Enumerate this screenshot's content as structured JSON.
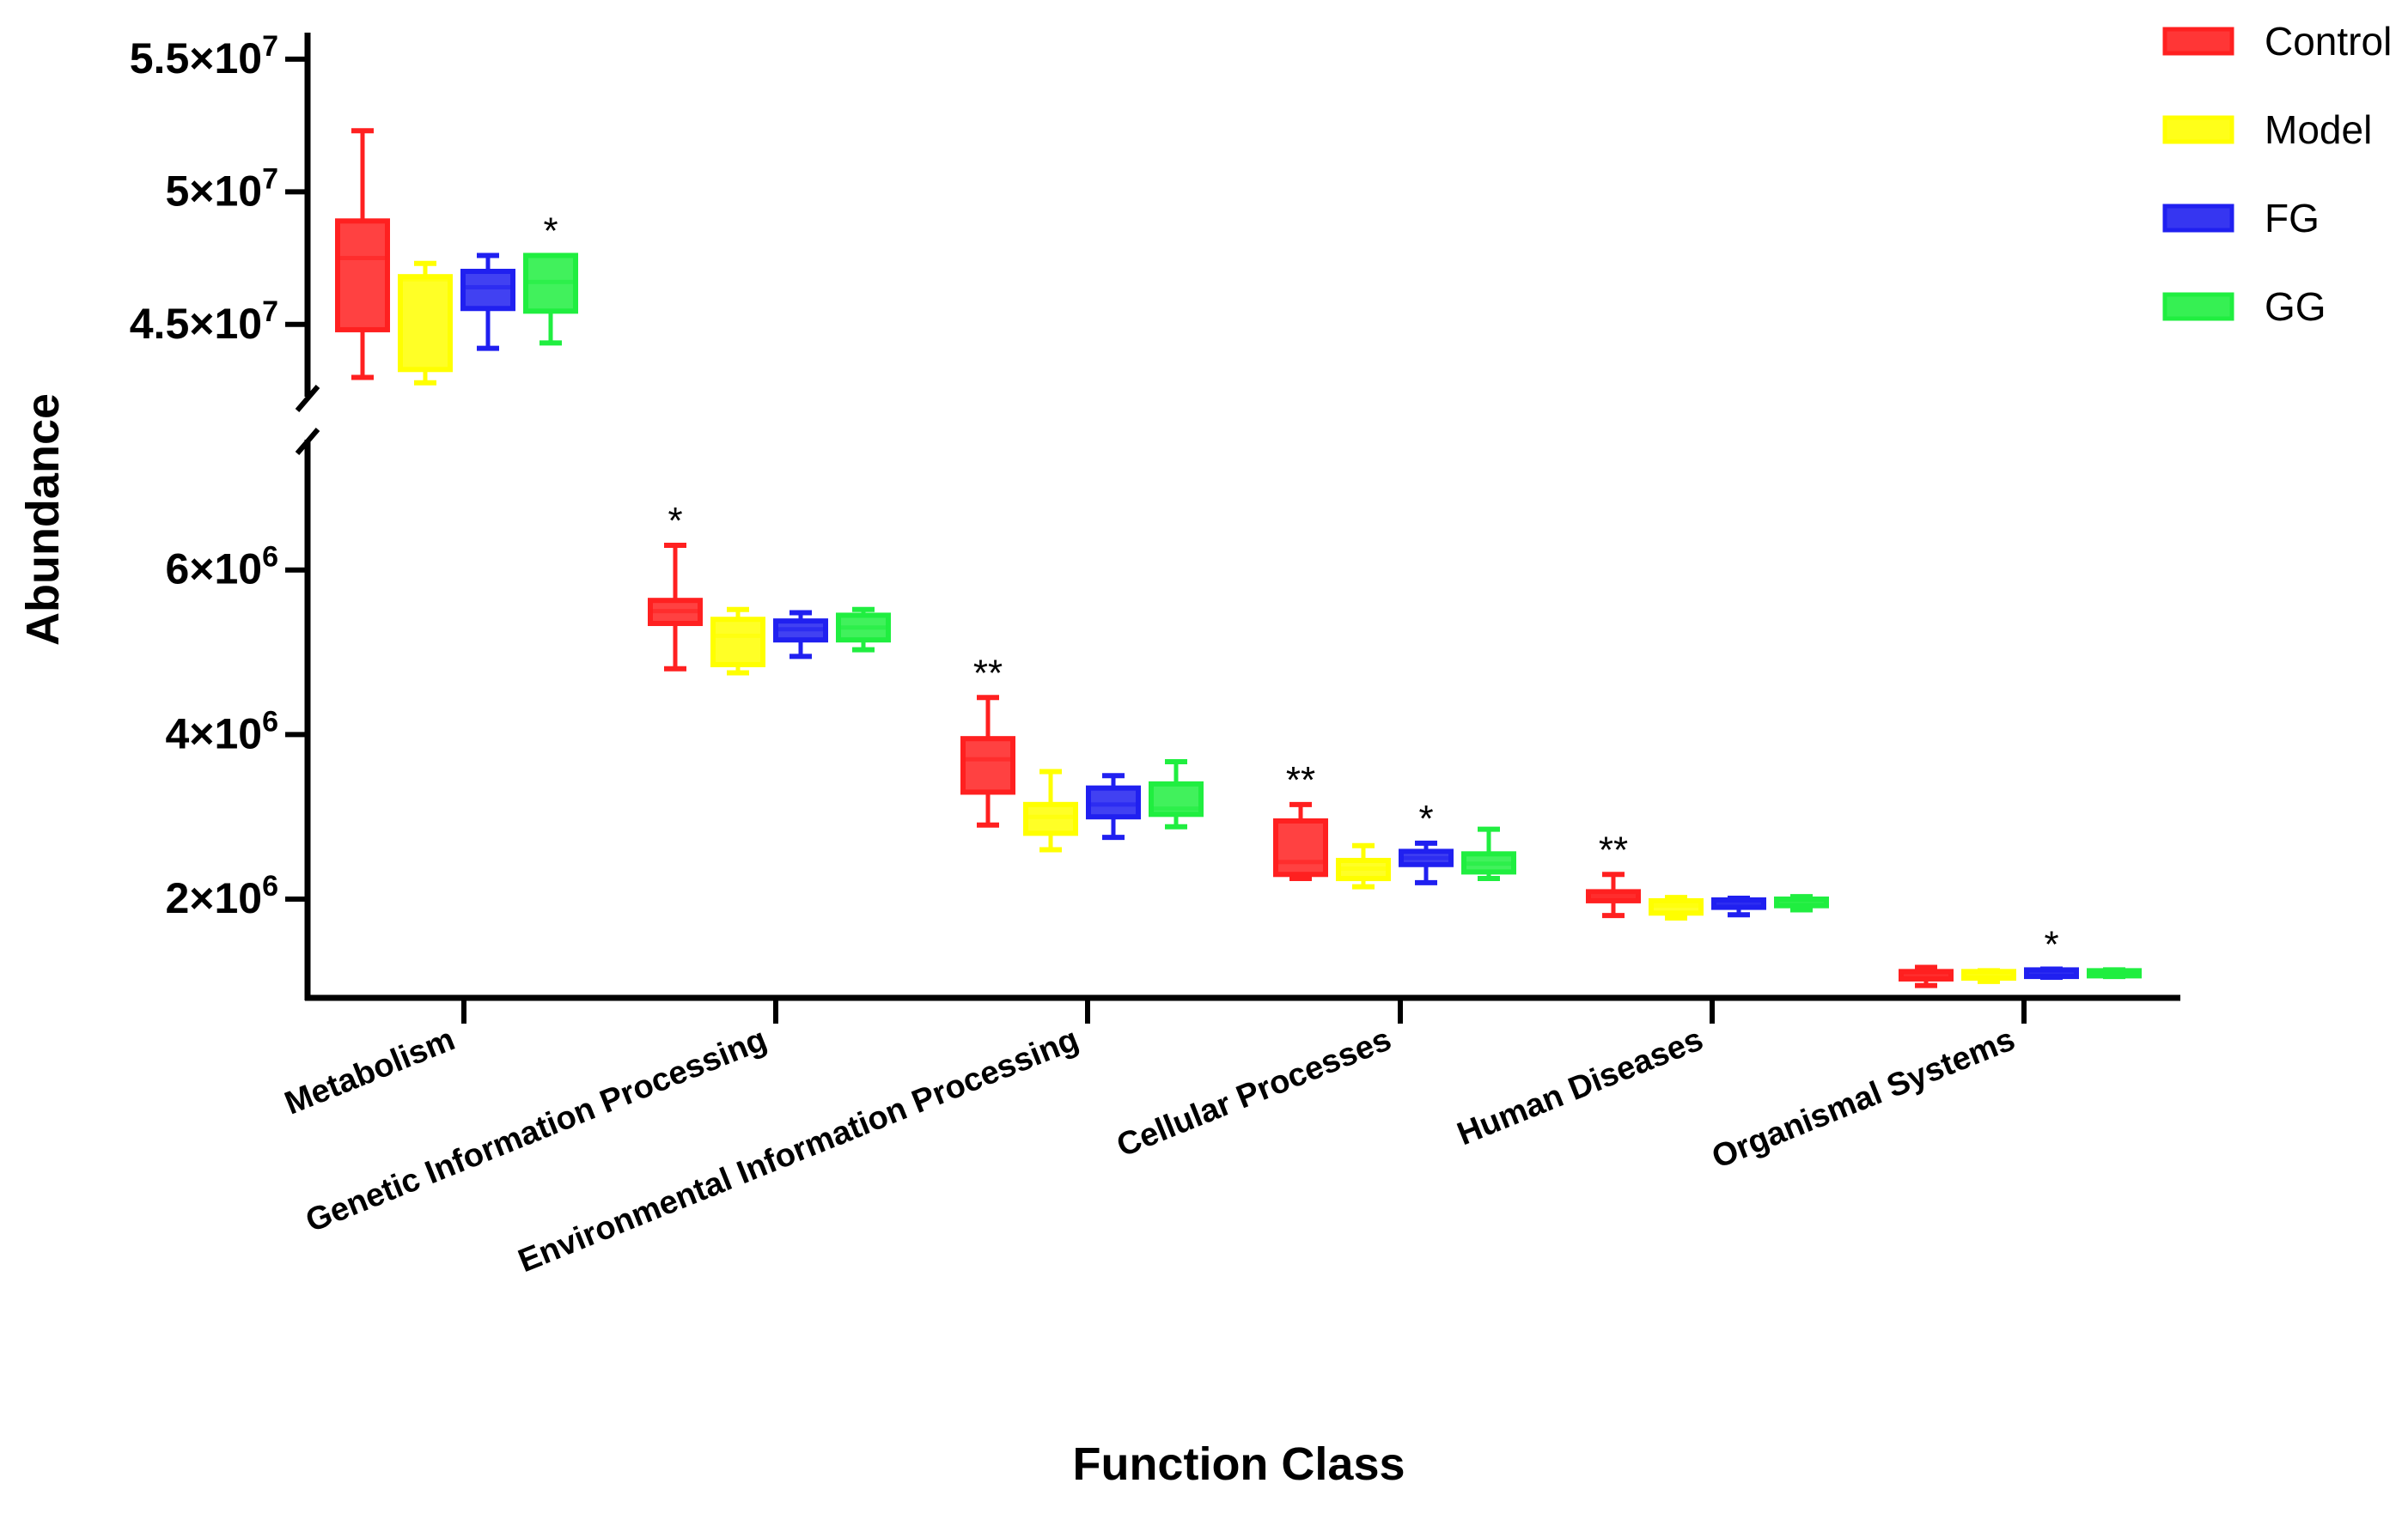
{
  "chart_data": {
    "type": "boxplot",
    "xlabel": "Function Class",
    "ylabel": "Abundance",
    "y_axis_break": true,
    "upper_segment": {
      "ylim": [
        42500000,
        56000000
      ],
      "ticks": [
        {
          "value": 45000000,
          "mantissa": "4.5×10",
          "exp": "7"
        },
        {
          "value": 50000000,
          "mantissa": "5×10",
          "exp": "7"
        },
        {
          "value": 55000000,
          "mantissa": "5.5×10",
          "exp": "7"
        }
      ]
    },
    "lower_segment": {
      "ylim": [
        800000,
        7500000
      ],
      "ticks": [
        {
          "value": 2000000,
          "mantissa": "2×10",
          "exp": "6"
        },
        {
          "value": 4000000,
          "mantissa": "4×10",
          "exp": "6"
        },
        {
          "value": 6000000,
          "mantissa": "6×10",
          "exp": "6"
        }
      ]
    },
    "colors": {
      "Control": "#ff2020",
      "Model": "#ffff00",
      "FG": "#2020f0",
      "GG": "#20ee40"
    },
    "legend": [
      {
        "name": "Control",
        "color": "#ff2020"
      },
      {
        "name": "Model",
        "color": "#ffff00"
      },
      {
        "name": "FG",
        "color": "#2020f0"
      },
      {
        "name": "GG",
        "color": "#20ee40"
      }
    ],
    "categories": [
      {
        "label": "Metabolism",
        "segment": "upper",
        "groups": [
          {
            "name": "Control",
            "min": 43000000,
            "q1": 44800000,
            "median": 47500000,
            "q3": 48900000,
            "max": 52300000,
            "sig": ""
          },
          {
            "name": "Model",
            "min": 42800000,
            "q1": 43300000,
            "median": 46700000,
            "q3": 46800000,
            "max": 47300000,
            "sig": ""
          },
          {
            "name": "FG",
            "min": 44100000,
            "q1": 45600000,
            "median": 46400000,
            "q3": 47000000,
            "max": 47600000,
            "sig": ""
          },
          {
            "name": "GG",
            "min": 44300000,
            "q1": 45500000,
            "median": 46600000,
            "q3": 47600000,
            "max": 47600000,
            "sig": "*"
          }
        ]
      },
      {
        "label": "Genetic Information Processing",
        "segment": "lower",
        "groups": [
          {
            "name": "Control",
            "min": 4800000,
            "q1": 5350000,
            "median": 5500000,
            "q3": 5630000,
            "max": 6300000,
            "sig": "*"
          },
          {
            "name": "Model",
            "min": 4750000,
            "q1": 4850000,
            "median": 5200000,
            "q3": 5400000,
            "max": 5520000,
            "sig": ""
          },
          {
            "name": "FG",
            "min": 4950000,
            "q1": 5150000,
            "median": 5280000,
            "q3": 5380000,
            "max": 5480000,
            "sig": ""
          },
          {
            "name": "GG",
            "min": 5030000,
            "q1": 5150000,
            "median": 5300000,
            "q3": 5450000,
            "max": 5520000,
            "sig": ""
          }
        ]
      },
      {
        "label": "Environmental Information Processing",
        "segment": "lower",
        "groups": [
          {
            "name": "Control",
            "min": 2900000,
            "q1": 3300000,
            "median": 3700000,
            "q3": 3950000,
            "max": 4450000,
            "sig": "**"
          },
          {
            "name": "Model",
            "min": 2600000,
            "q1": 2800000,
            "median": 3000000,
            "q3": 3150000,
            "max": 3550000,
            "sig": ""
          },
          {
            "name": "FG",
            "min": 2750000,
            "q1": 3000000,
            "median": 3150000,
            "q3": 3350000,
            "max": 3500000,
            "sig": ""
          },
          {
            "name": "GG",
            "min": 2880000,
            "q1": 3030000,
            "median": 3100000,
            "q3": 3400000,
            "max": 3670000,
            "sig": ""
          }
        ]
      },
      {
        "label": "Cellular Processes",
        "segment": "lower",
        "groups": [
          {
            "name": "Control",
            "min": 2250000,
            "q1": 2300000,
            "median": 2450000,
            "q3": 2950000,
            "max": 3150000,
            "sig": "**"
          },
          {
            "name": "Model",
            "min": 2150000,
            "q1": 2250000,
            "median": 2370000,
            "q3": 2470000,
            "max": 2650000,
            "sig": ""
          },
          {
            "name": "FG",
            "min": 2200000,
            "q1": 2420000,
            "median": 2500000,
            "q3": 2580000,
            "max": 2680000,
            "sig": "*"
          },
          {
            "name": "GG",
            "min": 2250000,
            "q1": 2330000,
            "median": 2430000,
            "q3": 2550000,
            "max": 2850000,
            "sig": ""
          }
        ]
      },
      {
        "label": "Human Diseases",
        "segment": "lower",
        "groups": [
          {
            "name": "Control",
            "min": 1800000,
            "q1": 1980000,
            "median": 2030000,
            "q3": 2090000,
            "max": 2300000,
            "sig": "**"
          },
          {
            "name": "Model",
            "min": 1770000,
            "q1": 1830000,
            "median": 1920000,
            "q3": 1980000,
            "max": 2020000,
            "sig": ""
          },
          {
            "name": "FG",
            "min": 1810000,
            "q1": 1900000,
            "median": 1950000,
            "q3": 1990000,
            "max": 2010000,
            "sig": ""
          },
          {
            "name": "GG",
            "min": 1870000,
            "q1": 1920000,
            "median": 1960000,
            "q3": 2000000,
            "max": 2030000,
            "sig": ""
          }
        ]
      },
      {
        "label": "Organismal Systems",
        "segment": "lower",
        "groups": [
          {
            "name": "Control",
            "min": 950000,
            "q1": 1030000,
            "median": 1080000,
            "q3": 1120000,
            "max": 1170000,
            "sig": ""
          },
          {
            "name": "Model",
            "min": 1000000,
            "q1": 1040000,
            "median": 1080000,
            "q3": 1120000,
            "max": 1130000,
            "sig": ""
          },
          {
            "name": "FG",
            "min": 1050000,
            "q1": 1060000,
            "median": 1100000,
            "q3": 1140000,
            "max": 1150000,
            "sig": "*"
          },
          {
            "name": "GG",
            "min": 1060000,
            "q1": 1080000,
            "median": 1100000,
            "q3": 1130000,
            "max": 1140000,
            "sig": ""
          }
        ]
      }
    ]
  }
}
